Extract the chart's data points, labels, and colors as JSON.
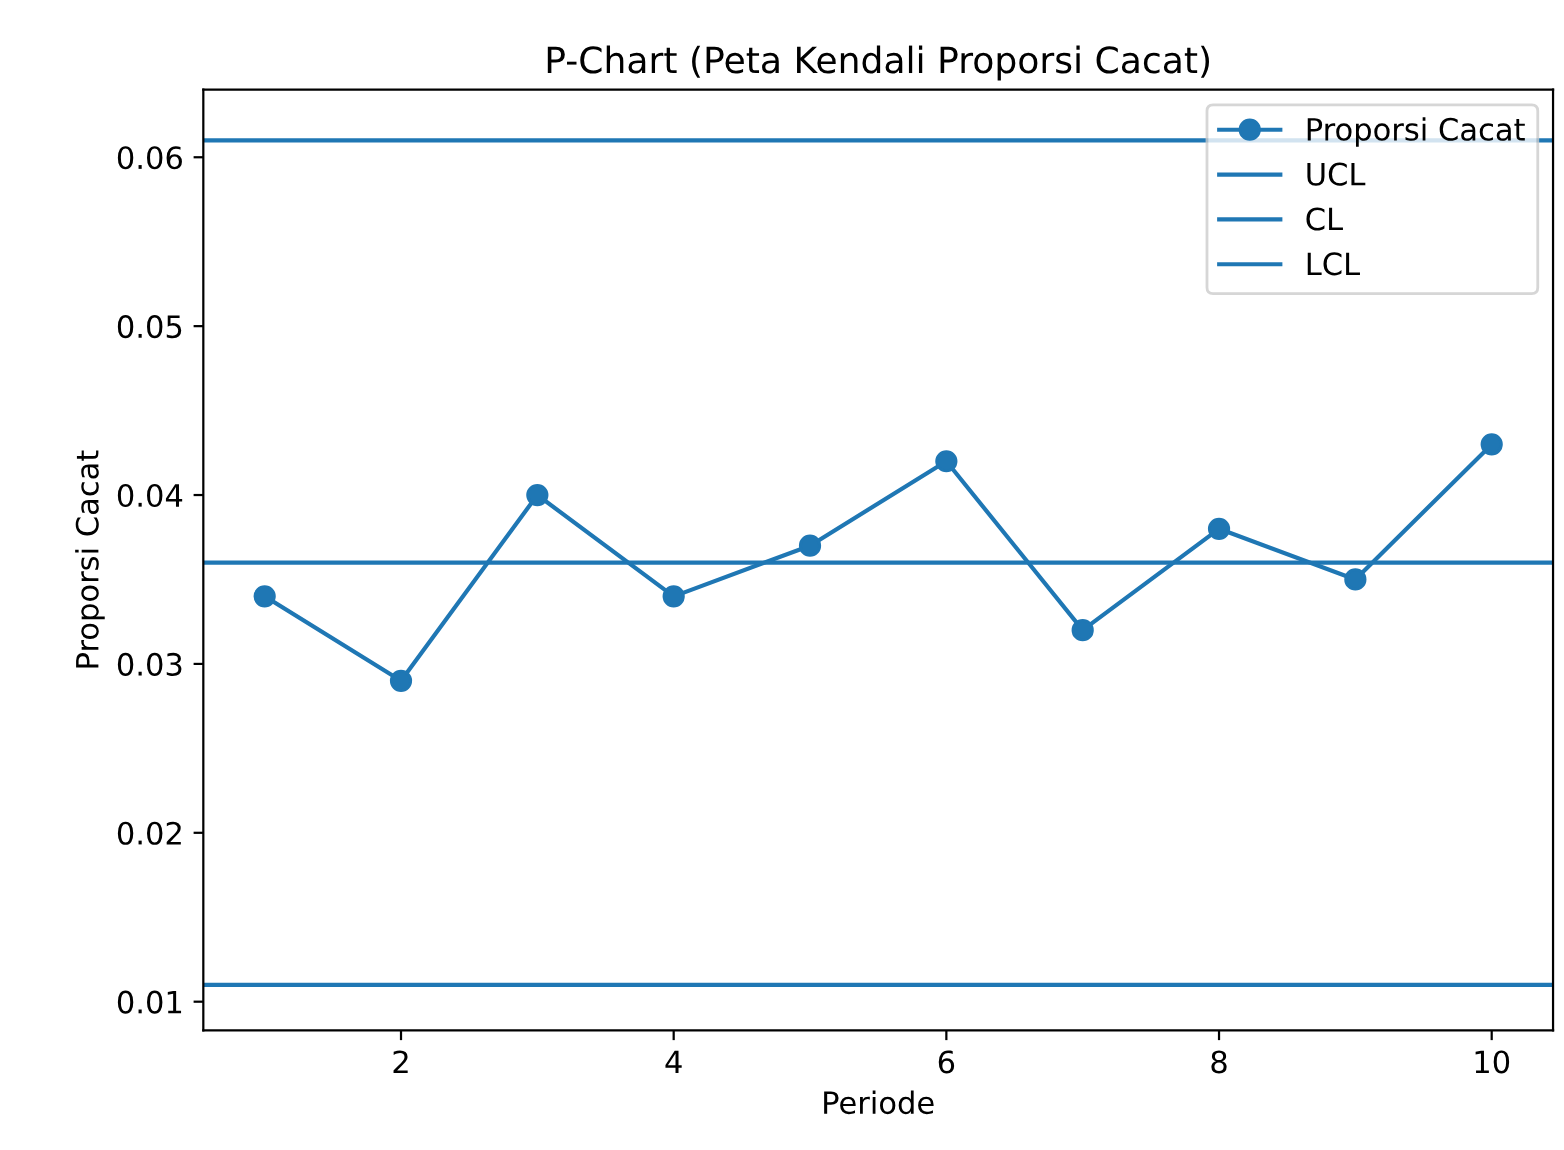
{
  "chart_data": {
    "type": "line",
    "title": "P-Chart (Peta Kendali Proporsi Cacat)",
    "xlabel": "Periode",
    "ylabel": "Proporsi Cacat",
    "x": [
      1,
      2,
      3,
      4,
      5,
      6,
      7,
      8,
      9,
      10
    ],
    "series": [
      {
        "name": "Proporsi Cacat",
        "color": "#1f77b4",
        "values": [
          0.034,
          0.029,
          0.04,
          0.034,
          0.037,
          0.042,
          0.032,
          0.038,
          0.035,
          0.043
        ]
      }
    ],
    "ref_lines": [
      {
        "axis": "y",
        "value": 0.061,
        "label": "UCL",
        "color": "#1f77b4"
      },
      {
        "axis": "y",
        "value": 0.036,
        "label": "CL",
        "color": "#1f77b4"
      },
      {
        "axis": "y",
        "value": 0.011,
        "label": "LCL",
        "color": "#1f77b4"
      }
    ],
    "xlim": [
      0.55,
      10.45
    ],
    "xticks": [
      2,
      4,
      6,
      8,
      10
    ],
    "ylim": [
      0.0083,
      0.064
    ],
    "yticks": [
      0.01,
      0.02,
      0.03,
      0.04,
      0.05,
      0.06
    ],
    "marker": "circle",
    "line_style": "solid",
    "legend": "top right",
    "grid": false
  }
}
